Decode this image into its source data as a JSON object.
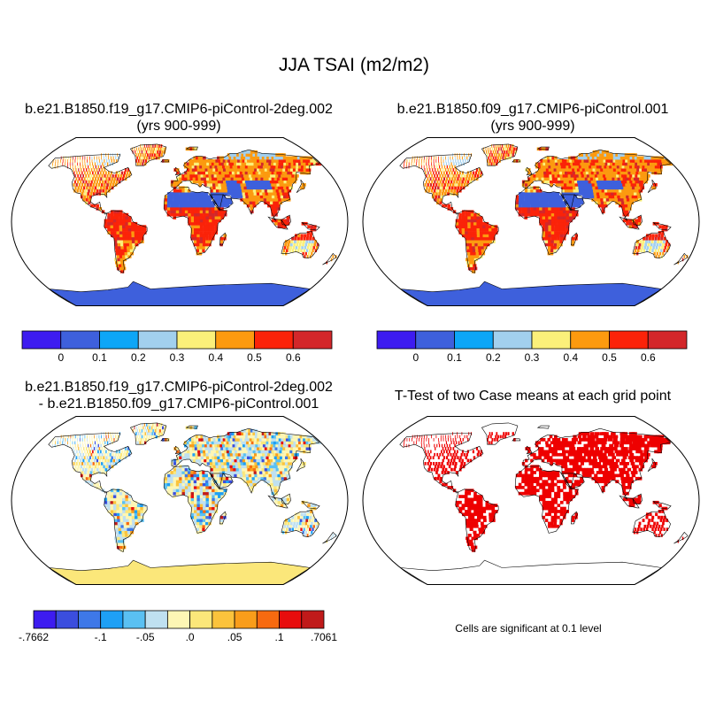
{
  "figure": {
    "title": "JJA TSAI (m2/m2)",
    "footnote": "Cells are significant at 0.1 level"
  },
  "panels": [
    {
      "id": "case1",
      "title_lines": [
        "b.e21.B1850.f19_g17.CMIP6-piControl-2deg.002",
        "(yrs 900-999)"
      ],
      "style": "field",
      "seed": 11
    },
    {
      "id": "case2",
      "title_lines": [
        "b.e21.B1850.f09_g17.CMIP6-piControl.001",
        "(yrs 900-999)"
      ],
      "style": "field",
      "seed": 29
    },
    {
      "id": "diff",
      "title_lines": [
        "b.e21.B1850.f19_g17.CMIP6-piControl-2deg.002",
        "- b.e21.B1850.f09_g17.CMIP6-piControl.001"
      ],
      "style": "diff",
      "seed": 47
    },
    {
      "id": "ttest",
      "title_lines": [
        "T-Test of two Case means at each grid point"
      ],
      "style": "ttest",
      "seed": 83
    }
  ],
  "colorbars": {
    "field": {
      "colors": [
        "#3d1cf0",
        "#3e60dc",
        "#0da6f7",
        "#a2d0ee",
        "#fbf07a",
        "#fc9a0f",
        "#fb2309",
        "#d3272a"
      ],
      "labels": [
        "0",
        "0.1",
        "0.2",
        "0.3",
        "0.4",
        "0.5",
        "0.6"
      ]
    },
    "diff": {
      "colors": [
        "#3d1cf0",
        "#3b4ede",
        "#3e78e8",
        "#1ea0f5",
        "#5ac0f2",
        "#bfe0f0",
        "#fdf6b5",
        "#fbe77a",
        "#fbc33c",
        "#f99d1a",
        "#f76a10",
        "#e80d0d",
        "#c01a1a"
      ],
      "labels": [
        "-.7662",
        "-.1",
        "-.05",
        ".0",
        ".05",
        ".1",
        ".7061"
      ]
    }
  },
  "ttest_color": "#ee0000"
}
